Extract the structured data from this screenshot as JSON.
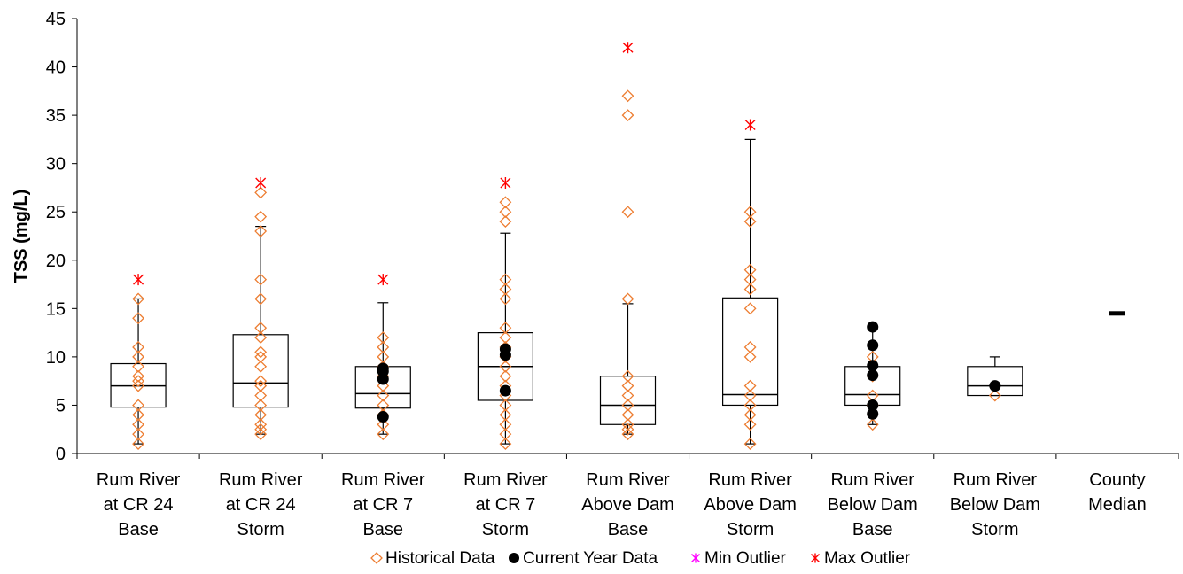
{
  "chart_data": {
    "type": "box",
    "title": "",
    "xlabel": "",
    "ylabel": "TSS (mg/L)",
    "ylim": [
      0,
      45
    ],
    "yticks": [
      0,
      5,
      10,
      15,
      20,
      25,
      30,
      35,
      40,
      45
    ],
    "grid": false,
    "legend_position": "bottom",
    "colors": {
      "historical": "#ED7D31",
      "current": "#000000",
      "min_outlier": "#FF00FF",
      "max_outlier": "#FF0000",
      "box": "#000000"
    },
    "categories": [
      {
        "label": [
          "Rum River",
          "at CR 24",
          "Base"
        ],
        "box": {
          "q1": 4.8,
          "median": 7.0,
          "q3": 9.3,
          "whisker_low": 1.0,
          "whisker_high": 16.0
        },
        "historical": [
          1,
          2,
          3,
          4,
          5,
          7,
          7.5,
          8,
          9,
          10,
          11,
          14,
          16
        ],
        "current": [],
        "max_outliers": [
          18
        ],
        "min_outliers": []
      },
      {
        "label": [
          "Rum River",
          "at CR 24",
          "Storm"
        ],
        "box": {
          "q1": 4.8,
          "median": 7.3,
          "q3": 12.3,
          "whisker_low": 2.0,
          "whisker_high": 23.5
        },
        "historical": [
          2,
          2.5,
          3,
          4,
          5,
          6,
          7,
          7.5,
          9,
          10,
          10.5,
          12,
          13,
          16,
          18,
          23,
          24.5,
          27
        ],
        "current": [],
        "max_outliers": [
          28
        ],
        "min_outliers": []
      },
      {
        "label": [
          "Rum River",
          "at CR 7",
          "Base"
        ],
        "box": {
          "q1": 4.7,
          "median": 6.2,
          "q3": 9.0,
          "whisker_low": 2.0,
          "whisker_high": 15.6
        },
        "historical": [
          2,
          3,
          4,
          5,
          6,
          7,
          8,
          9,
          10,
          11,
          12
        ],
        "current": [
          3.8,
          7.7,
          8.5,
          8.8
        ],
        "max_outliers": [
          18
        ],
        "min_outliers": []
      },
      {
        "label": [
          "Rum River",
          "at CR 7",
          "Storm"
        ],
        "box": {
          "q1": 5.5,
          "median": 9.0,
          "q3": 12.5,
          "whisker_low": 1.0,
          "whisker_high": 22.8
        },
        "historical": [
          1,
          2,
          3,
          4,
          5,
          6,
          7,
          8,
          9,
          10,
          11,
          12,
          13,
          16,
          17,
          18,
          24,
          25,
          26
        ],
        "current": [
          6.5,
          10.2,
          10.8
        ],
        "max_outliers": [
          28
        ],
        "min_outliers": []
      },
      {
        "label": [
          "Rum River",
          "Above Dam",
          "Base"
        ],
        "box": {
          "q1": 3.0,
          "median": 5.0,
          "q3": 8.0,
          "whisker_low": 2.0,
          "whisker_high": 15.5
        },
        "historical": [
          2,
          2.5,
          3,
          4,
          5,
          6,
          7,
          8,
          16,
          25,
          35,
          37
        ],
        "current": [],
        "max_outliers": [
          42
        ],
        "min_outliers": []
      },
      {
        "label": [
          "Rum River",
          "Above Dam",
          "Storm"
        ],
        "box": {
          "q1": 5.0,
          "median": 6.1,
          "q3": 16.1,
          "whisker_low": 1.0,
          "whisker_high": 32.5
        },
        "historical": [
          1,
          3,
          4,
          5,
          6,
          7,
          10,
          11,
          15,
          17,
          18,
          19,
          24,
          25
        ],
        "current": [],
        "max_outliers": [
          34
        ],
        "min_outliers": []
      },
      {
        "label": [
          "Rum River",
          "Below Dam",
          "Base"
        ],
        "box": {
          "q1": 5.0,
          "median": 6.1,
          "q3": 9.0,
          "whisker_low": 3.0,
          "whisker_high": 12.8
        },
        "historical": [
          3,
          4,
          5,
          6,
          8,
          10
        ],
        "current": [
          4.1,
          5.0,
          8.1,
          9.1,
          11.2,
          13.1
        ],
        "max_outliers": [],
        "min_outliers": []
      },
      {
        "label": [
          "Rum River",
          "Below Dam",
          "Storm"
        ],
        "box": {
          "q1": 6.0,
          "median": 7.0,
          "q3": 9.0,
          "whisker_low": 6.0,
          "whisker_high": 10.0
        },
        "historical": [
          6
        ],
        "current": [
          7.0
        ],
        "max_outliers": [],
        "min_outliers": []
      },
      {
        "label": [
          "County",
          "Median"
        ],
        "median_marker": 14.5,
        "historical": [],
        "current": [],
        "max_outliers": [],
        "min_outliers": []
      }
    ],
    "legend": [
      {
        "key": "historical",
        "label": "Historical Data",
        "marker": "diamond-open"
      },
      {
        "key": "current",
        "label": "Current Year Data",
        "marker": "circle-filled"
      },
      {
        "key": "min_outlier",
        "label": "Min Outlier",
        "marker": "asterisk"
      },
      {
        "key": "max_outlier",
        "label": "Max Outlier",
        "marker": "asterisk"
      }
    ]
  }
}
